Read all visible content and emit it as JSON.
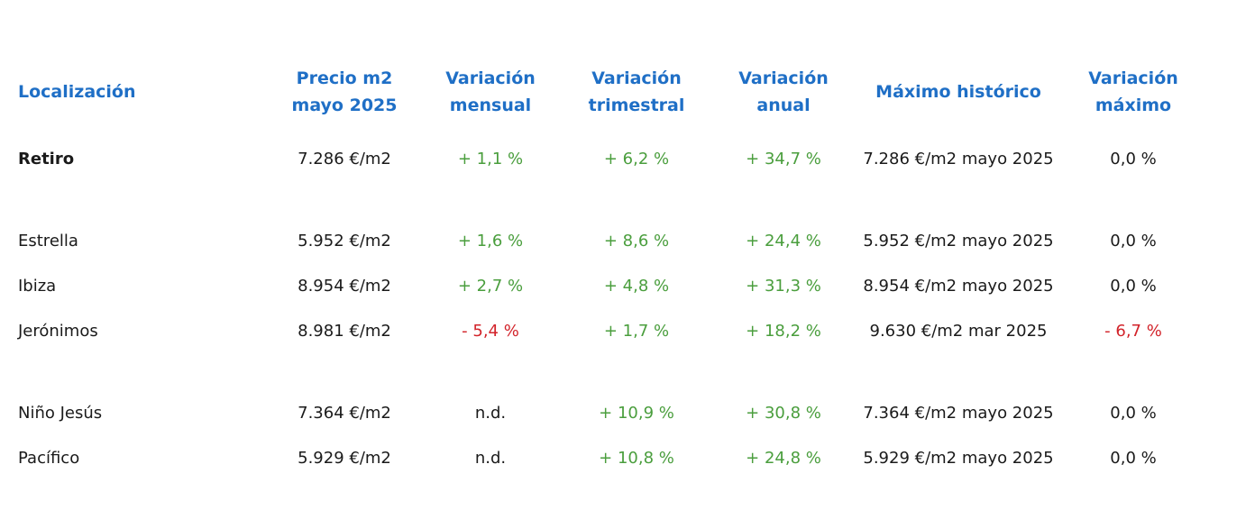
{
  "colors": {
    "header": "#1f6fc6",
    "positive": "#4a9e3d",
    "negative": "#d2232a",
    "text": "#1a1a1a"
  },
  "headers": {
    "location": "Localización",
    "price_l1": "Precio m2",
    "price_l2": "mayo 2025",
    "monthly_l1": "Variación",
    "monthly_l2": "mensual",
    "quarterly_l1": "Variación",
    "quarterly_l2": "trimestral",
    "annual_l1": "Variación",
    "annual_l2": "anual",
    "max_hist": "Máximo histórico",
    "var_max_l1": "Variación",
    "var_max_l2": "máximo"
  },
  "rows": [
    {
      "location": "Retiro",
      "price": "7.286 €/m2",
      "monthly": "+ 1,1 %",
      "quarterly": "+ 6,2 %",
      "annual": "+ 34,7 %",
      "max_hist": "7.286 €/m2 mayo 2025",
      "var_max": "0,0 %"
    },
    {
      "location": "Estrella",
      "price": "5.952 €/m2",
      "monthly": "+ 1,6 %",
      "quarterly": "+ 8,6 %",
      "annual": "+ 24,4 %",
      "max_hist": "5.952 €/m2 mayo 2025",
      "var_max": "0,0 %"
    },
    {
      "location": "Ibiza",
      "price": "8.954 €/m2",
      "monthly": "+ 2,7 %",
      "quarterly": "+ 4,8 %",
      "annual": "+ 31,3 %",
      "max_hist": "8.954 €/m2 mayo 2025",
      "var_max": "0,0 %"
    },
    {
      "location": "Jerónimos",
      "price": "8.981 €/m2",
      "monthly": "- 5,4 %",
      "quarterly": "+ 1,7 %",
      "annual": "+ 18,2 %",
      "max_hist": "9.630 €/m2 mar 2025",
      "var_max": "- 6,7 %"
    },
    {
      "location": "Niño Jesús",
      "price": "7.364 €/m2",
      "monthly": "n.d.",
      "quarterly": "+ 10,9 %",
      "annual": "+ 30,8 %",
      "max_hist": "7.364 €/m2 mayo 2025",
      "var_max": "0,0 %"
    },
    {
      "location": "Pacífico",
      "price": "5.929 €/m2",
      "monthly": "n.d.",
      "quarterly": "+ 10,8 %",
      "annual": "+ 24,8 %",
      "max_hist": "5.929 €/m2 mayo 2025",
      "var_max": "0,0 %"
    }
  ]
}
